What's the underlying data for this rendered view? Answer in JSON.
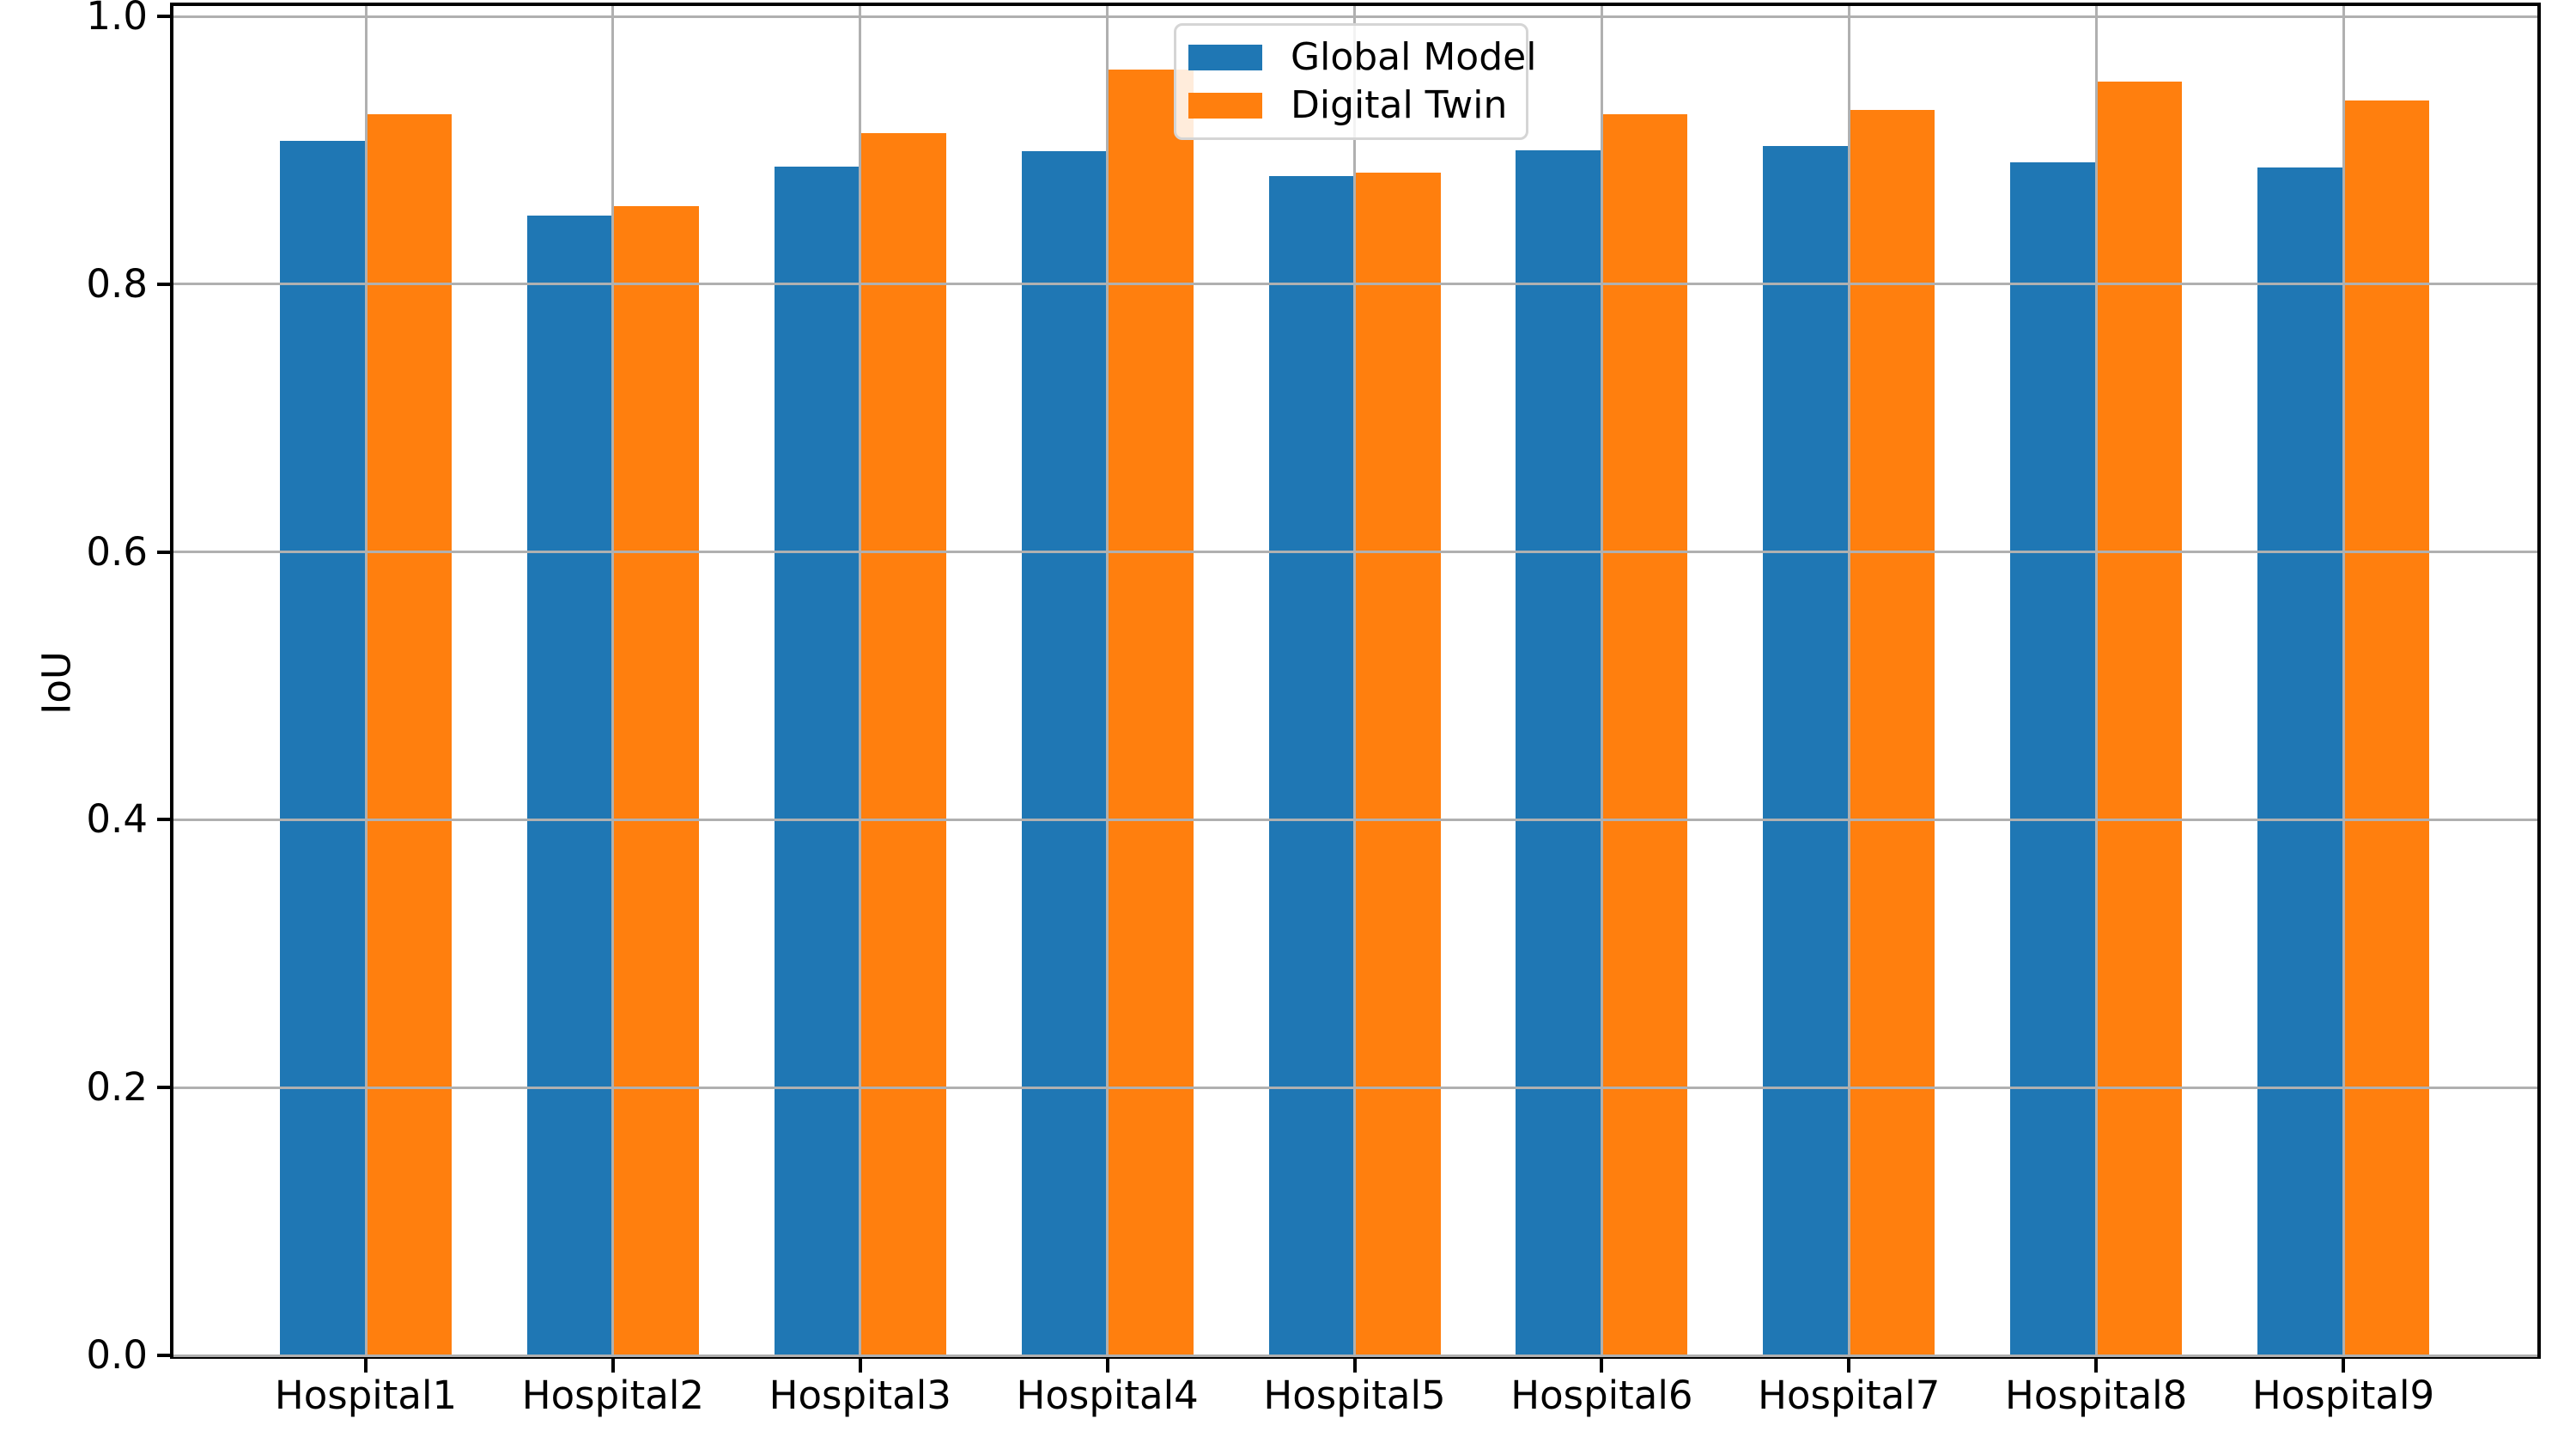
{
  "chart_data": {
    "type": "bar",
    "title": "",
    "xlabel": "",
    "ylabel": "IoU",
    "categories": [
      "Hospital1",
      "Hospital2",
      "Hospital3",
      "Hospital4",
      "Hospital5",
      "Hospital6",
      "Hospital7",
      "Hospital8",
      "Hospital9"
    ],
    "series": [
      {
        "name": "Global Model",
        "color": "#1f77b4",
        "values": [
          0.907,
          0.851,
          0.888,
          0.899,
          0.881,
          0.9,
          0.903,
          0.891,
          0.887
        ]
      },
      {
        "name": "Digital Twin",
        "color": "#ff7f0e",
        "values": [
          0.927,
          0.858,
          0.913,
          0.96,
          0.883,
          0.927,
          0.93,
          0.951,
          0.937
        ]
      }
    ],
    "ylim": [
      0.0,
      1.009
    ],
    "yticks": [
      "0.0",
      "0.2",
      "0.4",
      "0.6",
      "0.8",
      "1.0"
    ],
    "grid": true,
    "grid_color": "#b0b0b0",
    "axis_color": "#000000",
    "background_color": "#ffffff",
    "legend_position": "upper center",
    "legend_entries": [
      "Global Model",
      "Digital Twin"
    ]
  }
}
